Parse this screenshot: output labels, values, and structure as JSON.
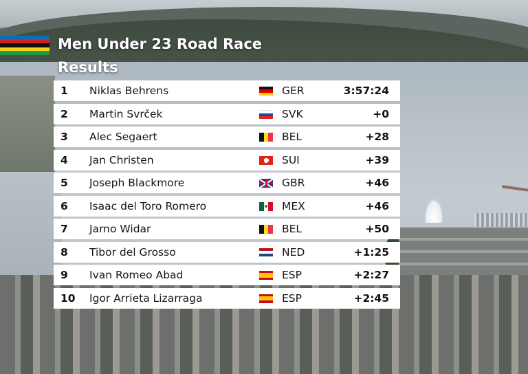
{
  "header": {
    "title": "Men Under 23 Road Race",
    "subtitle": "Results",
    "rainbow_colors": [
      "#0a6fb8",
      "#d6201f",
      "#111111",
      "#f6d20f",
      "#1f9a46"
    ]
  },
  "results": [
    {
      "position": "1",
      "name": "Niklas Behrens",
      "flag_icon": "flag-germany-icon",
      "country": "GER",
      "time": "3:57:24"
    },
    {
      "position": "2",
      "name": "Martin Svrček",
      "flag_icon": "flag-slovakia-icon",
      "country": "SVK",
      "time": "+0"
    },
    {
      "position": "3",
      "name": "Alec Segaert",
      "flag_icon": "flag-belgium-icon",
      "country": "BEL",
      "time": "+28"
    },
    {
      "position": "4",
      "name": "Jan Christen",
      "flag_icon": "flag-switzerland-icon",
      "country": "SUI",
      "time": "+39"
    },
    {
      "position": "5",
      "name": "Joseph Blackmore",
      "flag_icon": "flag-great-britain-icon",
      "country": "GBR",
      "time": "+46"
    },
    {
      "position": "6",
      "name": "Isaac del Toro Romero",
      "flag_icon": "flag-mexico-icon",
      "country": "MEX",
      "time": "+46"
    },
    {
      "position": "7",
      "name": "Jarno Widar",
      "flag_icon": "flag-belgium-icon",
      "country": "BEL",
      "time": "+50"
    },
    {
      "position": "8",
      "name": "Tibor del Grosso",
      "flag_icon": "flag-netherlands-icon",
      "country": "NED",
      "time": "+1:25"
    },
    {
      "position": "9",
      "name": "Ivan Romeo Abad",
      "flag_icon": "flag-spain-icon",
      "country": "ESP",
      "time": "+2:27"
    },
    {
      "position": "10",
      "name": "Igor Arrieta Lizarraga",
      "flag_icon": "flag-spain-icon",
      "country": "ESP",
      "time": "+2:45"
    }
  ]
}
